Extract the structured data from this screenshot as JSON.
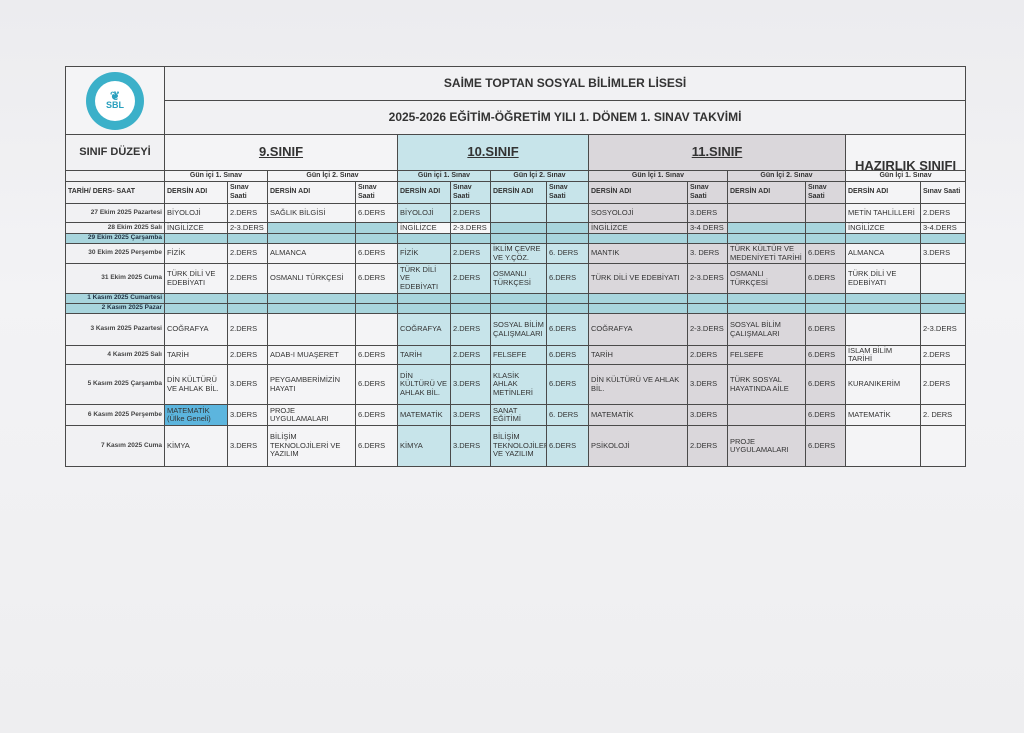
{
  "school_name": "SAİME TOPTAN SOSYAL BİLİMLER LİSESİ",
  "subtitle": "2025-2026 EĞİTİM-ÖĞRETİM YILI 1. DÖNEM 1. SINAV TAKVİMİ",
  "logo": {
    "text": "SAİME TOPTAN SOSYAL BİLİMLER LİSESİ",
    "abbr": "SBL"
  },
  "level_label": "SINIF DÜZEYİ",
  "date_header": "TARİH/ DERS- SAAT",
  "grades": [
    {
      "title": "9.SINIF",
      "sessions": [
        "Gün içi 1. Sınav",
        "Gün İçi 2. Sınav"
      ]
    },
    {
      "title": "10.SINIF",
      "sessions": [
        "Gün içi 1. Sınav",
        "Gün İçi 2. Sınav"
      ]
    },
    {
      "title": "11.SINIF",
      "sessions": [
        "Gün İçi 1. Sınav",
        "Gün İçi 2. Sınav"
      ]
    },
    {
      "title": "HAZIRLIK SINIFI",
      "sessions": [
        "Gün İçi 1. Sınav"
      ]
    }
  ],
  "col_headers": {
    "course": "DERSİN ADI",
    "time": "Sınav Saati"
  },
  "colors": {
    "grade10": "#c7e4ea",
    "grade11": "#dad7db",
    "holiday": "#a8d5dd",
    "highlight": "#5cb5de"
  },
  "rows": [
    {
      "date": "27 Ekim 2025 Pazartesi",
      "cells": [
        "BİYOLOJİ",
        "2.DERS",
        "SAĞLIK BİLGİSİ",
        "6.DERS",
        "BİYOLOJİ",
        "2.DERS",
        "",
        "",
        "SOSYOLOJİ",
        "3.DERS",
        "",
        "",
        "METİN TAHLİLLERİ",
        "2.DERS"
      ]
    },
    {
      "date": "28 Ekim 2025 Salı",
      "half_holiday": true,
      "cells": [
        "İNGİLİZCE",
        "2-3.DERS",
        "",
        "",
        "İNGİLİZCE",
        "2-3.DERS",
        "",
        "",
        "İNGİLİZCE",
        "3-4 DERS",
        "",
        "",
        "İNGİLİZCE",
        "3-4.DERS"
      ]
    },
    {
      "date": "29 Ekim 2025 Çarşamba",
      "holiday": true,
      "cells": [
        "",
        "",
        "",
        "",
        "",
        "",
        "",
        "",
        "",
        "",
        "",
        "",
        "",
        ""
      ]
    },
    {
      "date": "30 Ekim 2025 Perşembe",
      "cells": [
        "FİZİK",
        "2.DERS",
        "ALMANCA",
        "6.DERS",
        "FİZİK",
        "2.DERS",
        "İKLİM ÇEVRE VE Y.ÇÖZ.",
        "6. DERS",
        "MANTIK",
        "3. DERS",
        "TÜRK KÜLTÜR VE MEDENİYETİ TARİHİ",
        "6.DERS",
        "ALMANCA",
        "3.DERS"
      ]
    },
    {
      "date": "31 Ekim 2025 Cuma",
      "cells": [
        "TÜRK DİLİ VE EDEBİYATI",
        "2.DERS",
        "OSMANLI TÜRKÇESİ",
        "6.DERS",
        "TÜRK DİLİ VE EDEBİYATI",
        "2.DERS",
        "OSMANLI TÜRKÇESİ",
        "6.DERS",
        "TÜRK DİLİ VE EDEBİYATI",
        "2-3.DERS",
        "OSMANLI TÜRKÇESİ",
        "6.DERS",
        "TÜRK DİLİ VE EDEBİYATI",
        ""
      ]
    },
    {
      "date": "1 Kasım 2025 Cumartesi",
      "holiday": true,
      "cells": [
        "",
        "",
        "",
        "",
        "",
        "",
        "",
        "",
        "",
        "",
        "",
        "",
        "",
        ""
      ]
    },
    {
      "date": "2 Kasım 2025 Pazar",
      "holiday": true,
      "cells": [
        "",
        "",
        "",
        "",
        "",
        "",
        "",
        "",
        "",
        "",
        "",
        "",
        "",
        ""
      ]
    },
    {
      "date": "3 Kasım 2025 Pazartesi",
      "cells": [
        "COĞRAFYA",
        "2.DERS",
        "",
        "",
        "COĞRAFYA",
        "2.DERS",
        "SOSYAL BİLİM ÇALIŞMALARI",
        "6.DERS",
        "COĞRAFYA",
        "2-3.DERS",
        "SOSYAL BİLİM ÇALIŞMALARI",
        "6.DERS",
        "",
        "2-3.DERS"
      ]
    },
    {
      "date": "4 Kasım 2025 Salı",
      "cells": [
        "TARİH",
        "2.DERS",
        "ADAB-I MUAŞERET",
        "6.DERS",
        "TARİH",
        "2.DERS",
        "FELSEFE",
        "6.DERS",
        "TARİH",
        "2.DERS",
        "FELSEFE",
        "6.DERS",
        "İSLAM BİLİM TARİHİ",
        "2.DERS"
      ]
    },
    {
      "date": "5 Kasım 2025 Çarşamba",
      "cells": [
        "DİN KÜLTÜRÜ VE AHLAK BİL.",
        "3.DERS",
        "PEYGAMBERİMİZİN HAYATI",
        "6.DERS",
        "DİN KÜLTÜRÜ VE AHLAK BİL.",
        "3.DERS",
        "KLASİK AHLAK METİNLERİ",
        "6.DERS",
        "DİN KÜLTÜRÜ VE AHLAK BİL.",
        "3.DERS",
        "TÜRK SOSYAL HAYATINDA AİLE",
        "6.DERS",
        "KURANIKERİM",
        "2.DERS"
      ]
    },
    {
      "date": "6 Kasım 2025 Perşembe",
      "highlight": [
        0
      ],
      "cells": [
        "MATEMATİK (Ülke Geneli)",
        "3.DERS",
        "PROJE UYGULAMALARI",
        "6.DERS",
        "MATEMATİK",
        "3.DERS",
        "SANAT EĞİTİMİ",
        "6. DERS",
        "MATEMATİK",
        "3.DERS",
        "",
        "6.DERS",
        "MATEMATİK",
        "2. DERS"
      ]
    },
    {
      "date": "7 Kasım 2025 Cuma",
      "cells": [
        "KİMYA",
        "3.DERS",
        "BİLİŞİM TEKNOLOJİLERİ VE YAZILIM",
        "6.DERS",
        "KİMYA",
        "3.DERS",
        "BİLİŞİM TEKNOLOJİLERİ VE YAZILIM",
        "6.DERS",
        "PSİKOLOJİ",
        "2.DERS",
        "PROJE UYGULAMALARI",
        "6.DERS",
        "",
        ""
      ]
    }
  ]
}
